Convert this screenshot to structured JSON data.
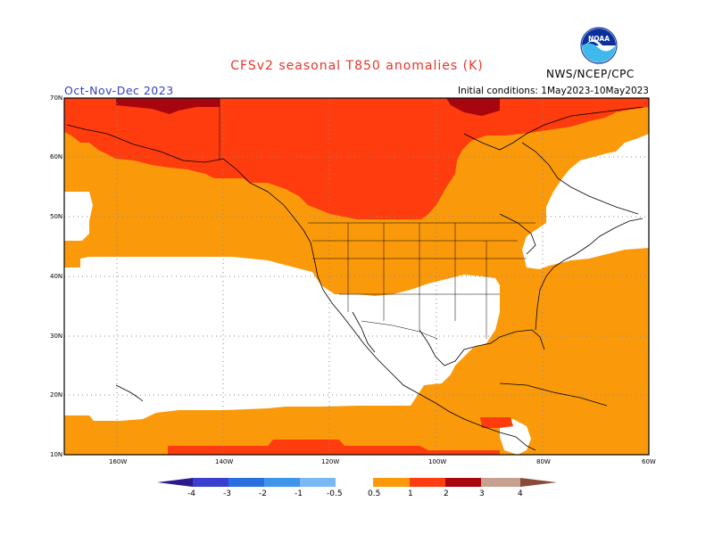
{
  "header": {
    "title": "CFSv2 seasonal T850 anomalies (K)",
    "season": "Oct-Nov-Dec 2023",
    "initial_conditions": "Initial conditions: 1May2023-10May2023",
    "agency": "NWS/NCEP/CPC",
    "logo_text": "NOAA"
  },
  "map": {
    "lat_labels": [
      "70N",
      "60N",
      "50N",
      "40N",
      "30N",
      "20N",
      "10N"
    ],
    "lon_labels": [
      "160W",
      "140W",
      "120W",
      "100W",
      "80W",
      "60W"
    ],
    "lat_range": [
      10,
      70
    ],
    "lon_range": [
      -170,
      -60
    ],
    "grid": "dotted"
  },
  "colorbar": {
    "ticks": [
      "-4",
      "-3",
      "-2",
      "-1",
      "-0.5",
      "0.5",
      "1",
      "2",
      "3",
      "4"
    ],
    "colors": {
      "lt_-4": "#2a1a8c",
      "-4_-3": "#3b3fcf",
      "-3_-2": "#2a6fe0",
      "-2_-1": "#3d96ea",
      "-1_-0.5": "#7ab8f5",
      "-0.5_0.5": "#ffffff",
      "0.5_1": "#fa9a0a",
      "1_2": "#fe3c0e",
      "2_3": "#a8060e",
      "3_4": "#c8a090",
      "gt_4": "#8a4a3a"
    }
  }
}
